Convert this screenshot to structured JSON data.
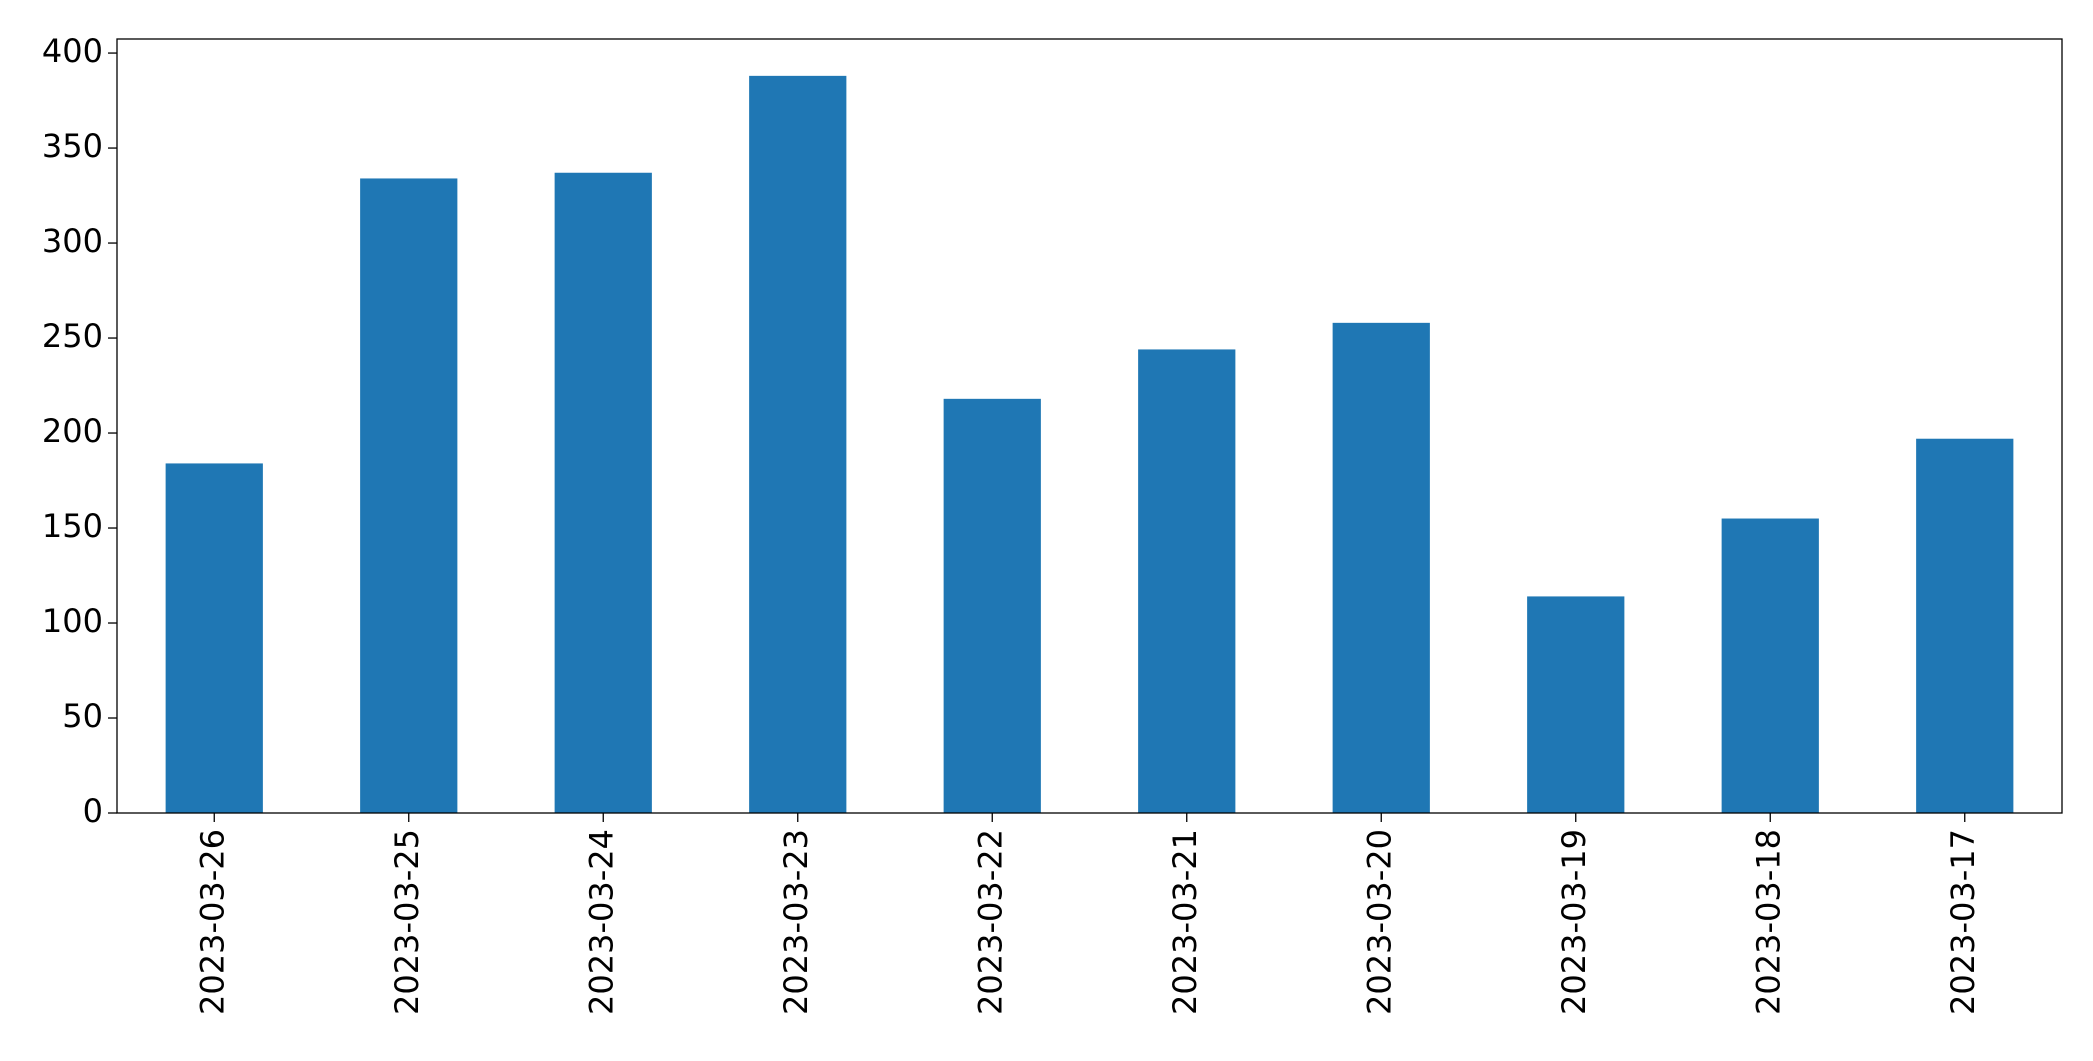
{
  "chart_data": {
    "type": "bar",
    "categories": [
      "2023-03-26",
      "2023-03-25",
      "2023-03-24",
      "2023-03-23",
      "2023-03-22",
      "2023-03-21",
      "2023-03-20",
      "2023-03-19",
      "2023-03-18",
      "2023-03-17"
    ],
    "values": [
      184,
      334,
      337,
      388,
      218,
      244,
      258,
      114,
      155,
      197
    ],
    "color": "#1f77b4",
    "ylim": [
      0,
      407.4
    ],
    "yticks": [
      0,
      50,
      100,
      150,
      200,
      250,
      300,
      350,
      400
    ],
    "grid": false
  }
}
